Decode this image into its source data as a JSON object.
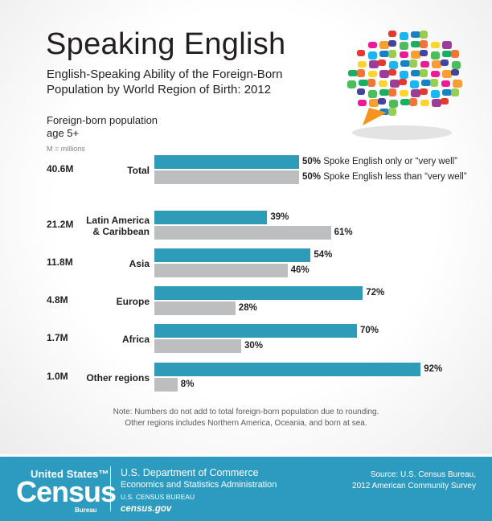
{
  "title": "Speaking English",
  "subtitle": "English-Speaking Ability of the Foreign-Born Population by World Region of Birth: 2012",
  "population_header": "Foreign-born population age 5+",
  "population_unit": "M = millions",
  "colors": {
    "english_well": "#2e9bb8",
    "english_less": "#bcbec0",
    "footer": "#2d9bc0"
  },
  "chart_data": {
    "type": "bar",
    "orientation": "horizontal",
    "title": "English-Speaking Ability of the Foreign-Born Population by World Region of Birth: 2012",
    "categories": [
      "Total",
      "Latin America & Caribbean",
      "Asia",
      "Europe",
      "Africa",
      "Other regions"
    ],
    "population": [
      "40.6M",
      "21.2M",
      "11.8M",
      "4.8M",
      "1.7M",
      "1.0M"
    ],
    "series": [
      {
        "name": "Spoke English only or “very well”",
        "values": [
          50,
          39,
          54,
          72,
          70,
          92
        ],
        "labels": [
          "50%",
          "39%",
          "54%",
          "72%",
          "70%",
          "92%"
        ]
      },
      {
        "name": "Spoke English less than “very well”",
        "values": [
          50,
          61,
          46,
          28,
          30,
          8
        ],
        "labels": [
          "50%",
          "61%",
          "46%",
          "28%",
          "30%",
          "8%"
        ]
      }
    ],
    "xlim": [
      0,
      100
    ],
    "grid": false
  },
  "rows": [
    {
      "region_lines": [
        "Total"
      ],
      "population": "40.6M",
      "well_label": "50%",
      "less_label": "50%"
    },
    {
      "region_lines": [
        "Latin America",
        "& Caribbean"
      ],
      "population": "21.2M",
      "well_label": "39%",
      "less_label": "61%"
    },
    {
      "region_lines": [
        "Asia"
      ],
      "population": "11.8M",
      "well_label": "54%",
      "less_label": "46%"
    },
    {
      "region_lines": [
        "Europe"
      ],
      "population": "4.8M",
      "well_label": "72%",
      "less_label": "28%"
    },
    {
      "region_lines": [
        "Africa"
      ],
      "population": "1.7M",
      "well_label": "70%",
      "less_label": "30%"
    },
    {
      "region_lines": [
        "Other regions"
      ],
      "population": "1.0M",
      "well_label": "92%",
      "less_label": "8%"
    }
  ],
  "total_legend": {
    "well": "Spoke English only or “very well”",
    "less": "Spoke English less than “very well”"
  },
  "note_line1": "Note:  Numbers do not add to total foreign-born population due to rounding.",
  "note_line2": "Other regions includes Northern America, Oceania, and born at sea.",
  "footer": {
    "logo_top": "United States™",
    "logo_main": "Census",
    "logo_bureau": "Bureau",
    "dept": "U.S. Department of Commerce",
    "admin": "Economics and Statistics Administration",
    "bureau": "U.S. CENSUS BUREAU",
    "site": "census.gov",
    "source_line1": "Source: U.S. Census Bureau,",
    "source_line2": "2012 American Community Survey"
  }
}
